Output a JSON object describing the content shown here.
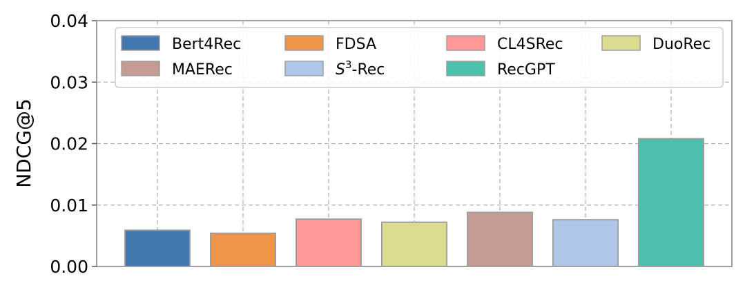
{
  "chart_data": {
    "type": "bar",
    "ylabel": "NDCG@5",
    "xlabel": "",
    "ylim": [
      0,
      0.04
    ],
    "yticks": [
      "0.00",
      "0.01",
      "0.02",
      "0.03",
      "0.04"
    ],
    "grid": true,
    "legend_position": "top",
    "legend_columns": 4,
    "series": [
      {
        "name": "Bert4Rec",
        "name_main": "Bert4Rec",
        "name_sup": "",
        "name_suffix": "",
        "value": 0.0059,
        "color": "#4378b0"
      },
      {
        "name": "FDSA",
        "name_main": "FDSA",
        "name_sup": "",
        "name_suffix": "",
        "value": 0.0054,
        "color": "#f0944a"
      },
      {
        "name": "CL4SRec",
        "name_main": "CL4SRec",
        "name_sup": "",
        "name_suffix": "",
        "value": 0.0077,
        "color": "#ff9896"
      },
      {
        "name": "DuoRec",
        "name_main": "DuoRec",
        "name_sup": "",
        "name_suffix": "",
        "value": 0.0072,
        "color": "#dbdb8d"
      },
      {
        "name": "MAERec",
        "name_main": "MAERec",
        "name_sup": "",
        "name_suffix": "",
        "value": 0.0088,
        "color": "#c49c94"
      },
      {
        "name": "S3-Rec",
        "name_main": "S",
        "name_sup": "3",
        "name_suffix": "-Rec",
        "value": 0.0076,
        "color": "#aec7e8"
      },
      {
        "name": "RecGPT",
        "name_main": "RecGPT",
        "name_sup": "",
        "name_suffix": "",
        "value": 0.0208,
        "color": "#4bc0aa"
      }
    ]
  }
}
